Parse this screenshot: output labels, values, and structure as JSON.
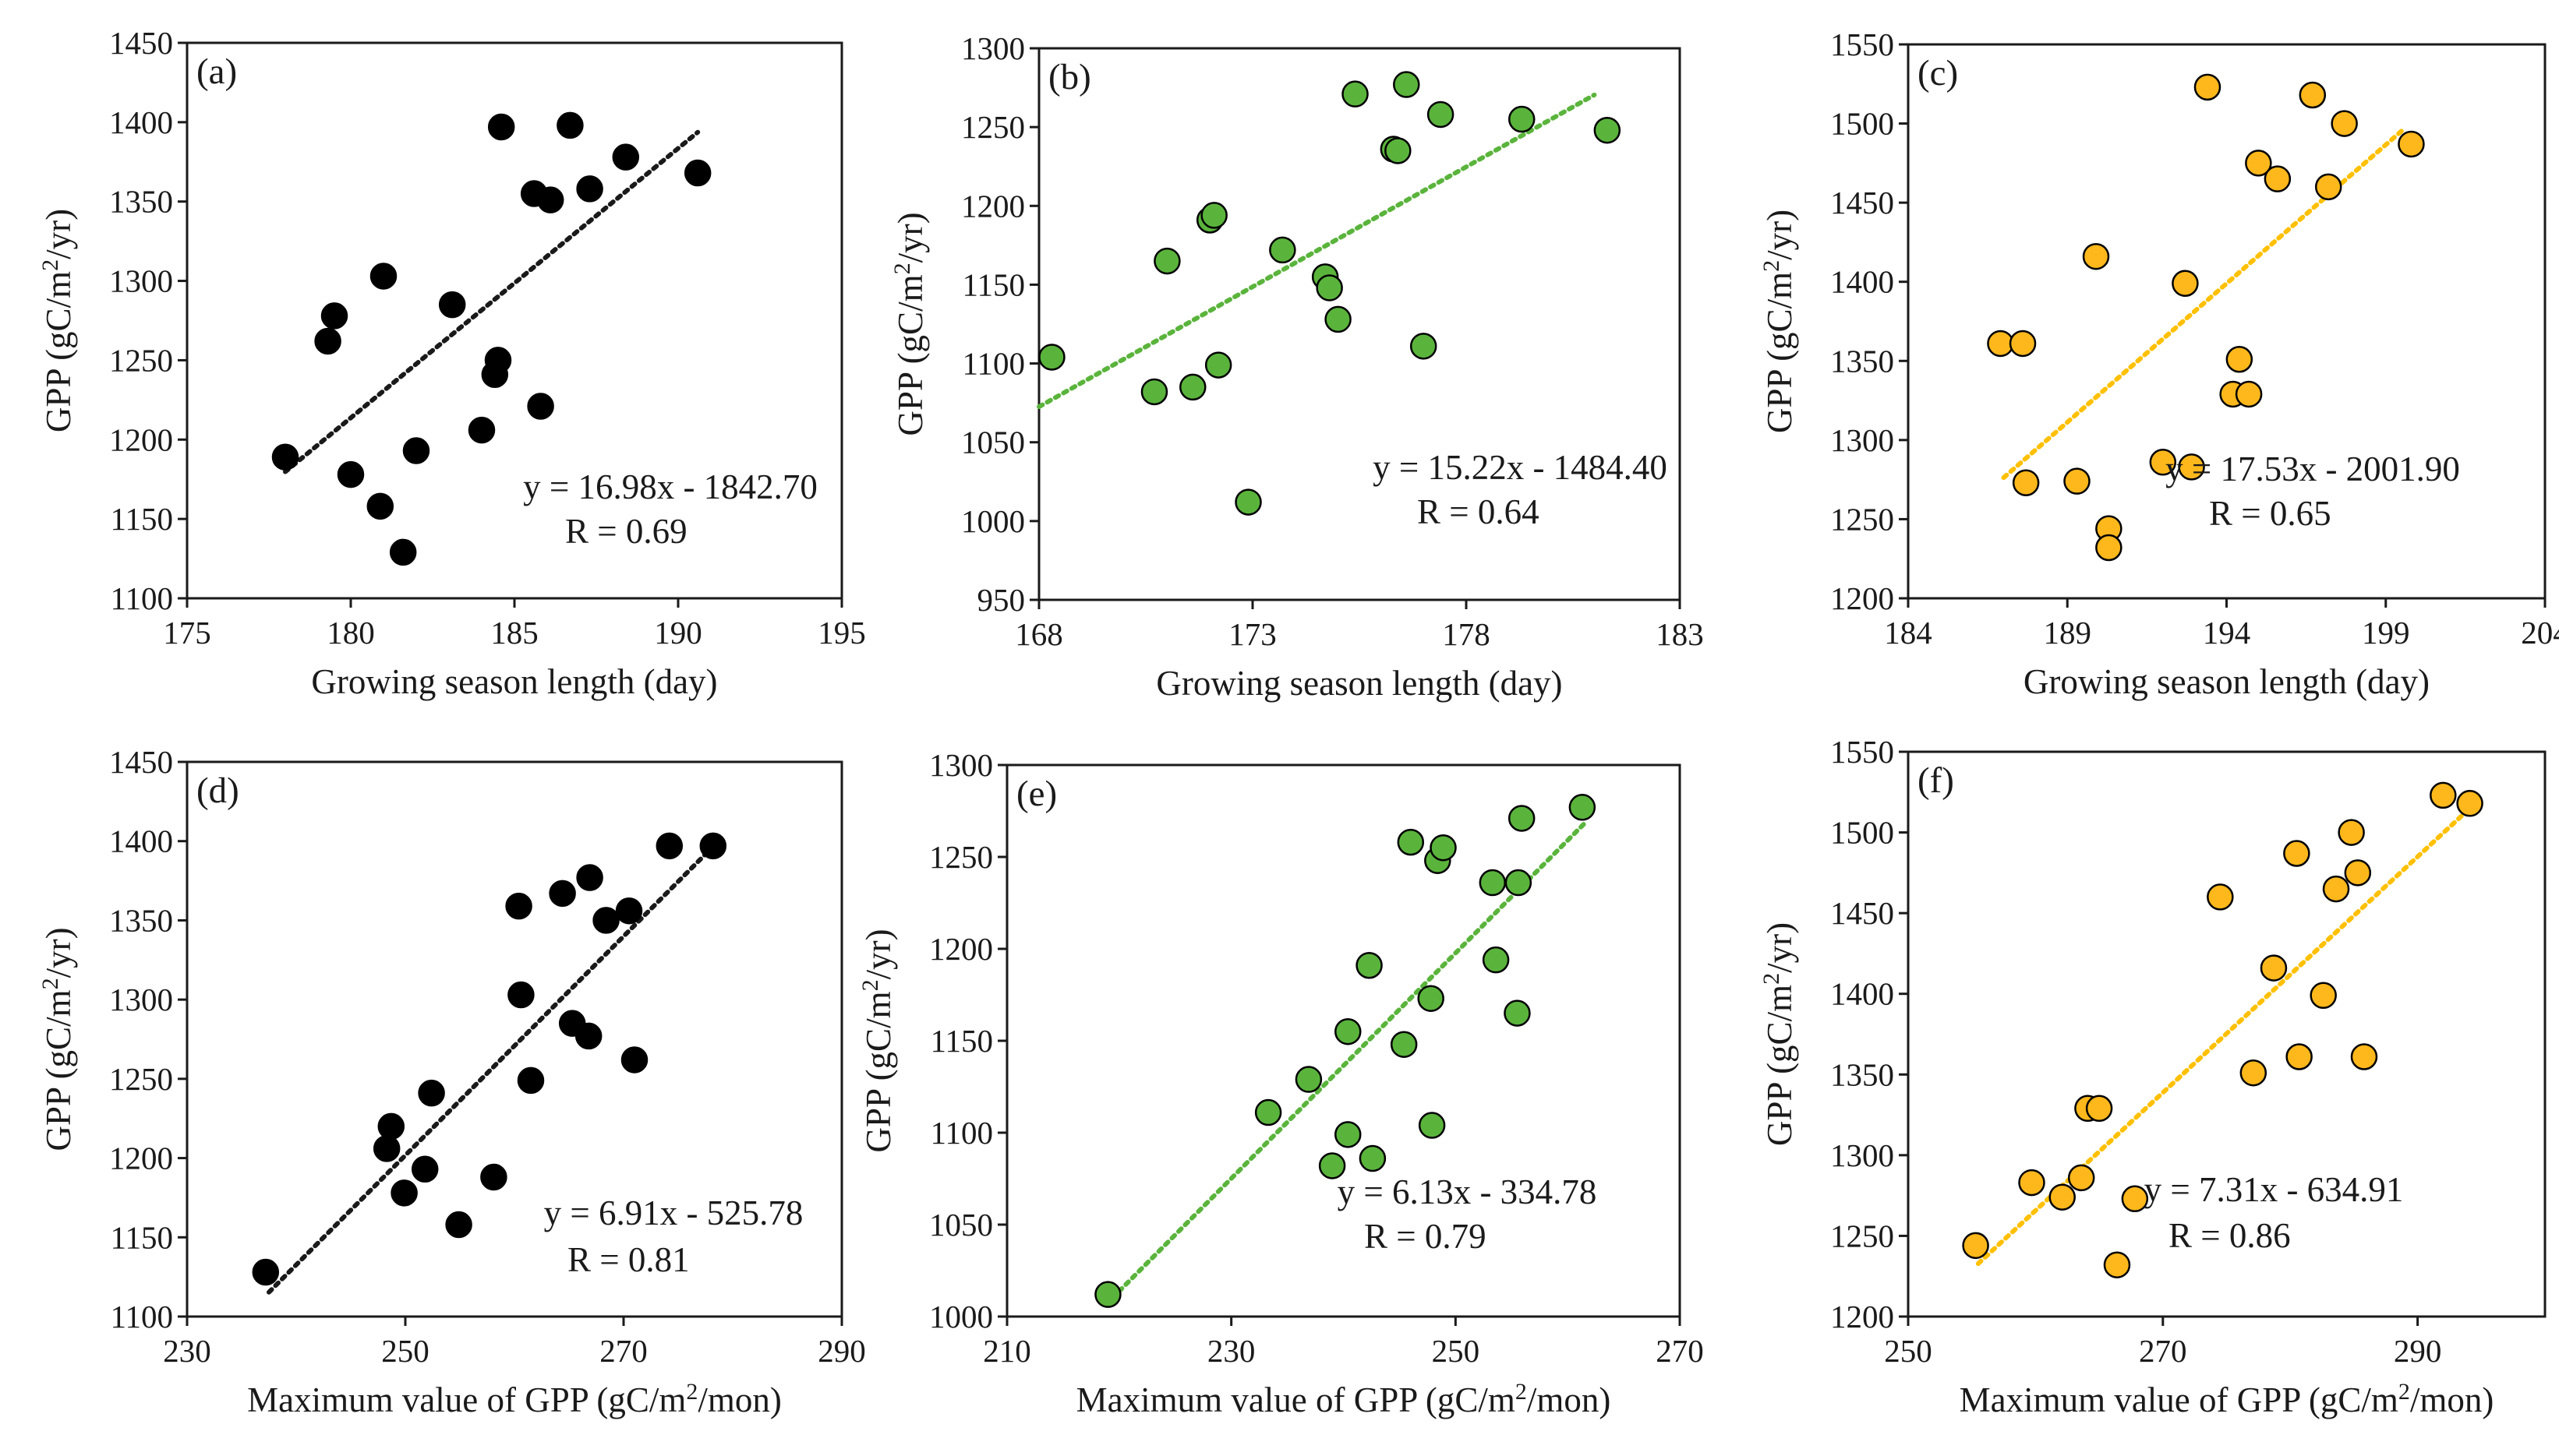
{
  "chart_data": [
    {
      "type": "scatter",
      "panel_label": "(a)",
      "xlabel": "Growing season length (day)",
      "ylabel": "GPP (gC/m²/yr)",
      "xlim": [
        175,
        195
      ],
      "ylim": [
        1100,
        1450
      ],
      "xticks": [
        175,
        180,
        185,
        190,
        195
      ],
      "yticks": [
        1100,
        1150,
        1200,
        1250,
        1300,
        1350,
        1400,
        1450
      ],
      "marker_color": "#000000",
      "trend_color": "#1a1a1a",
      "x": [
        178.0,
        179.3,
        179.5,
        180.0,
        180.9,
        181.0,
        181.6,
        182.0,
        183.1,
        184.0,
        184.4,
        184.5,
        184.6,
        185.6,
        185.8,
        186.1,
        186.7,
        187.3,
        188.4,
        190.6
      ],
      "y": [
        1189,
        1262,
        1278,
        1178,
        1158,
        1303,
        1129,
        1193,
        1285,
        1206,
        1241,
        1250,
        1397,
        1355,
        1221,
        1351,
        1398,
        1358,
        1378,
        1368
      ],
      "trend_x": [
        178.0,
        190.6
      ],
      "equation": "y = 16.98x - 1842.70",
      "r_text": "R = 0.69"
    },
    {
      "type": "scatter",
      "panel_label": "(b)",
      "xlabel": "Growing season length (day)",
      "ylabel": "GPP (gC/m²/yr)",
      "xlim": [
        168,
        183
      ],
      "ylim": [
        950,
        1300
      ],
      "xticks": [
        168,
        173,
        178,
        183
      ],
      "yticks": [
        950,
        1000,
        1050,
        1100,
        1150,
        1200,
        1250,
        1300
      ],
      "marker_color": "#5ab43c",
      "trend_color": "#5ab43c",
      "x": [
        168.3,
        170.7,
        171.0,
        171.6,
        172.0,
        172.2,
        172.1,
        172.9,
        173.7,
        174.7,
        174.8,
        175.0,
        175.4,
        176.3,
        176.4,
        176.6,
        177.0,
        177.4,
        179.3,
        181.3
      ],
      "y": [
        1104,
        1082,
        1165,
        1085,
        1191,
        1099,
        1194,
        1012,
        1172,
        1155,
        1148,
        1128,
        1271,
        1236,
        1235,
        1277,
        1111,
        1258,
        1255,
        1248
      ],
      "trend_x": [
        168.0,
        181.0
      ],
      "equation": "y = 15.22x - 1484.40",
      "r_text": "R = 0.64"
    },
    {
      "type": "scatter",
      "panel_label": "(c)",
      "xlabel": "Growing season length (day)",
      "ylabel": "GPP (gC/m²/yr)",
      "xlim": [
        184,
        204
      ],
      "ylim": [
        1200,
        1550
      ],
      "xticks": [
        184,
        189,
        194,
        199,
        204
      ],
      "yticks": [
        1200,
        1250,
        1300,
        1350,
        1400,
        1450,
        1500,
        1550
      ],
      "marker_color": "#ffb81c",
      "trend_color": "#ffc000",
      "x": [
        186.9,
        187.6,
        187.7,
        189.3,
        189.9,
        190.3,
        190.3,
        192.0,
        192.7,
        192.9,
        194.2,
        194.4,
        194.7,
        193.4,
        195.0,
        195.6,
        196.7,
        197.2,
        197.7,
        199.8
      ],
      "y": [
        1361,
        1361,
        1273,
        1274,
        1416,
        1244,
        1232,
        1286,
        1399,
        1283,
        1329,
        1351,
        1329,
        1523,
        1475,
        1465,
        1518,
        1460,
        1500,
        1487
      ],
      "trend_x": [
        187.0,
        199.5
      ],
      "equation": "y = 17.53x - 2001.90",
      "r_text": "R = 0.65"
    },
    {
      "type": "scatter",
      "panel_label": "(d)",
      "xlabel": "Maximum value of GPP (gC/m²/mon)",
      "ylabel": "GPP (gC/m²/yr)",
      "xlim": [
        230,
        290
      ],
      "ylim": [
        1100,
        1450
      ],
      "xticks": [
        230,
        250,
        270,
        290
      ],
      "yticks": [
        1100,
        1150,
        1200,
        1250,
        1300,
        1350,
        1400,
        1450
      ],
      "marker_color": "#000000",
      "trend_color": "#1a1a1a",
      "x": [
        237.2,
        248.3,
        248.7,
        249.9,
        251.8,
        252.4,
        254.9,
        258.1,
        260.4,
        260.6,
        261.5,
        264.4,
        265.3,
        266.9,
        266.8,
        268.4,
        270.5,
        271.0,
        274.2,
        278.2
      ],
      "y": [
        1128,
        1206,
        1220,
        1178,
        1193,
        1241,
        1158,
        1188,
        1359,
        1303,
        1249,
        1367,
        1285,
        1377,
        1277,
        1350,
        1356,
        1262,
        1397,
        1397
      ],
      "trend_x": [
        237.5,
        278.5
      ],
      "equation": "y = 6.91x - 525.78",
      "r_text": "R = 0.81"
    },
    {
      "type": "scatter",
      "panel_label": "(e)",
      "xlabel": "Maximum value of GPP (gC/m²/mon)",
      "ylabel": "GPP (gC/m²/yr)",
      "xlim": [
        210,
        270
      ],
      "ylim": [
        1000,
        1300
      ],
      "xticks": [
        210,
        230,
        250,
        270
      ],
      "yticks": [
        1000,
        1050,
        1100,
        1150,
        1200,
        1250,
        1300
      ],
      "marker_color": "#5ab43c",
      "trend_color": "#5ab43c",
      "x": [
        219.0,
        233.3,
        236.9,
        239.0,
        240.4,
        240.4,
        242.3,
        242.6,
        245.4,
        246.0,
        247.9,
        247.8,
        248.4,
        248.9,
        253.3,
        253.6,
        255.5,
        255.6,
        255.9,
        261.3
      ],
      "y": [
        1012,
        1111,
        1129,
        1082,
        1155,
        1099,
        1191,
        1086,
        1148,
        1258,
        1104,
        1173,
        1248,
        1255,
        1236,
        1194,
        1165,
        1236,
        1271,
        1277
      ],
      "trend_x": [
        220.0,
        261.5
      ],
      "equation": "y = 6.13x - 334.78",
      "r_text": "R = 0.79"
    },
    {
      "type": "scatter",
      "panel_label": "(f)",
      "xlabel": "Maximum value of GPP (gC/m²/mon)",
      "ylabel": "GPP (gC/m²/yr)",
      "xlim": [
        250,
        300
      ],
      "ylim": [
        1200,
        1550
      ],
      "xticks": [
        250,
        270,
        290
      ],
      "yticks": [
        1200,
        1250,
        1300,
        1350,
        1400,
        1450,
        1500,
        1550
      ],
      "marker_color": "#ffb81c",
      "trend_color": "#ffc000",
      "x": [
        255.3,
        259.7,
        262.1,
        263.6,
        264.1,
        265.0,
        266.4,
        267.8,
        274.5,
        277.1,
        278.7,
        280.5,
        280.7,
        282.6,
        283.6,
        284.8,
        285.3,
        285.8,
        292.0,
        294.1
      ],
      "y": [
        1244,
        1283,
        1274,
        1286,
        1329,
        1329,
        1232,
        1273,
        1460,
        1351,
        1416,
        1487,
        1361,
        1399,
        1465,
        1500,
        1475,
        1361,
        1523,
        1518
      ],
      "trend_x": [
        255.5,
        294.5
      ],
      "equation": "y = 7.31x - 634.91",
      "r_text": "R = 0.86"
    }
  ]
}
